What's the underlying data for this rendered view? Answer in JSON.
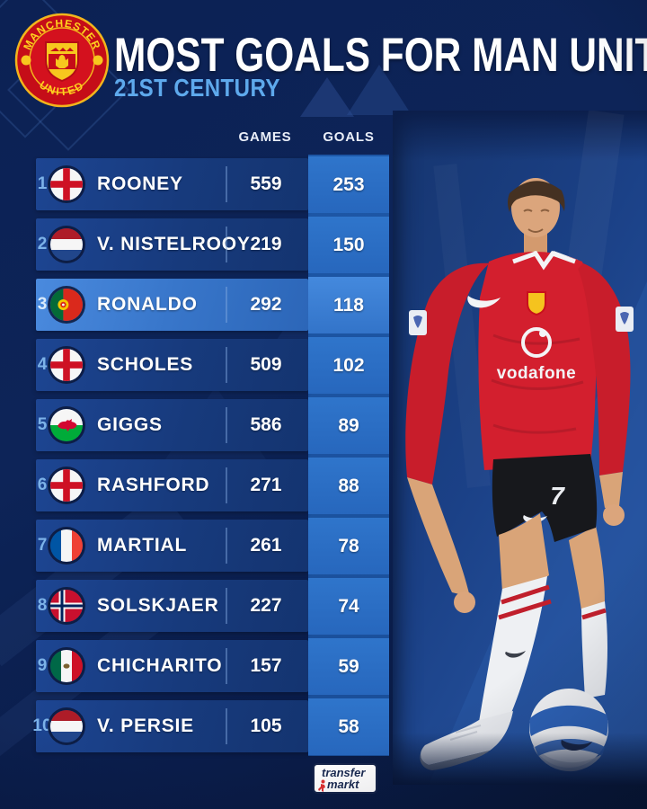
{
  "header": {
    "title": "MOST GOALS FOR MAN UNITED",
    "subtitle": "21ST CENTURY",
    "crest": {
      "top_text": "MANCHESTER",
      "bottom_text": "UNITED"
    }
  },
  "table": {
    "columns": {
      "games": "GAMES",
      "goals": "GOALS"
    },
    "rows": [
      {
        "rank": "1",
        "flag": "england",
        "name": "ROONEY",
        "games": "559",
        "goals": "253",
        "highlight": false
      },
      {
        "rank": "2",
        "flag": "netherlands",
        "name": "V. NISTELROOY",
        "games": "219",
        "goals": "150",
        "highlight": false
      },
      {
        "rank": "3",
        "flag": "portugal",
        "name": "RONALDO",
        "games": "292",
        "goals": "118",
        "highlight": true
      },
      {
        "rank": "4",
        "flag": "england",
        "name": "SCHOLES",
        "games": "509",
        "goals": "102",
        "highlight": false
      },
      {
        "rank": "5",
        "flag": "wales",
        "name": "GIGGS",
        "games": "586",
        "goals": "89",
        "highlight": false
      },
      {
        "rank": "6",
        "flag": "england",
        "name": "RASHFORD",
        "games": "271",
        "goals": "88",
        "highlight": false
      },
      {
        "rank": "7",
        "flag": "france",
        "name": "MARTIAL",
        "games": "261",
        "goals": "78",
        "highlight": false
      },
      {
        "rank": "8",
        "flag": "norway",
        "name": "SOLSKJAER",
        "games": "227",
        "goals": "74",
        "highlight": false
      },
      {
        "rank": "9",
        "flag": "mexico",
        "name": "CHICHARITO",
        "games": "157",
        "goals": "59",
        "highlight": false
      },
      {
        "rank": "10",
        "flag": "netherlands",
        "name": "V. PERSIE",
        "games": "105",
        "goals": "58",
        "highlight": false
      }
    ]
  },
  "photo": {
    "shirt_sponsor": "vodafone",
    "shorts_number": "7"
  },
  "footer": {
    "logo_line1": "transfer",
    "logo_line2": "markt"
  },
  "colors": {
    "accent_blue": "#5ea9ec",
    "rank_blue": "#7cb2e8",
    "row_panel": "#173a7c",
    "highlight_row": "#4a8ade",
    "goal_cell": "#2f75cb",
    "goals_band": "#1d57a6",
    "shirt_red": "#d31f2e",
    "backdrop_blue": "#1b4187",
    "page_navy": "#0c2154"
  }
}
